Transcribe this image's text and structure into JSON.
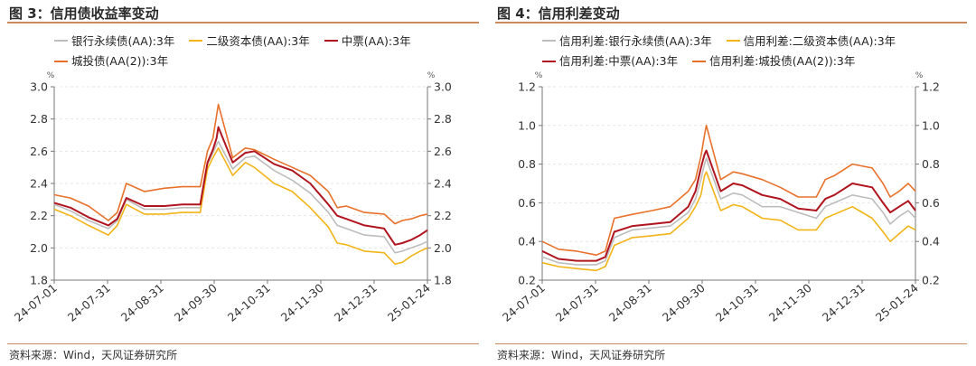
{
  "colors": {
    "accent_rule": "#c98a5e",
    "series": [
      "#bdbdbd",
      "#f2b417",
      "#b0141e",
      "#e8712a"
    ],
    "grid": "#e6e6e6"
  },
  "panels": [
    {
      "title": "图 3：信用债收益率变动",
      "source": "资料来源：Wind，天风证券研究所",
      "legend": [
        "银行永续债(AA):3年",
        "二级资本债(AA):3年",
        "中票(AA):3年",
        "城投债(AA(2)):3年"
      ]
    },
    {
      "title": "图 4：信用利差变动",
      "source": "资料来源：Wind，天风证券研究所",
      "legend": [
        "信用利差:银行永续债(AA):3年",
        "信用利差:二级资本债(AA):3年",
        "信用利差:中票(AA):3年",
        "信用利差:城投债(AA(2)):3年"
      ]
    }
  ],
  "chart_data": [
    {
      "type": "line",
      "title": "图 3：信用债收益率变动",
      "unit_left": "%",
      "unit_right": "%",
      "ylim": [
        1.8,
        3.0
      ],
      "yticks": [
        "1.8",
        "2.0",
        "2.2",
        "2.4",
        "2.6",
        "2.8",
        "3.0"
      ],
      "xlim": [
        "2024-07-01",
        "2025-01-24"
      ],
      "xtick_labels": [
        "24-07-01",
        "24-07-31",
        "24-08-31",
        "24-09-30",
        "24-10-31",
        "24-11-30",
        "24-12-31",
        "25-01-24"
      ],
      "grid": true,
      "legend_position": "top",
      "x": [
        "2024-07-01",
        "2024-07-10",
        "2024-07-20",
        "2024-07-31",
        "2024-08-05",
        "2024-08-10",
        "2024-08-20",
        "2024-08-31",
        "2024-09-10",
        "2024-09-20",
        "2024-09-24",
        "2024-09-27",
        "2024-09-29",
        "2024-09-30",
        "2024-10-08",
        "2024-10-15",
        "2024-10-20",
        "2024-10-31",
        "2024-11-10",
        "2024-11-20",
        "2024-11-30",
        "2024-12-05",
        "2024-12-10",
        "2024-12-20",
        "2024-12-31",
        "2025-01-06",
        "2025-01-10",
        "2025-01-15",
        "2025-01-20",
        "2025-01-24"
      ],
      "series": [
        {
          "name": "银行永续债(AA):3年",
          "values": [
            2.27,
            2.23,
            2.17,
            2.12,
            2.17,
            2.3,
            2.24,
            2.24,
            2.25,
            2.25,
            2.52,
            2.59,
            2.64,
            2.66,
            2.49,
            2.56,
            2.57,
            2.48,
            2.42,
            2.34,
            2.22,
            2.14,
            2.12,
            2.08,
            2.07,
            1.97,
            1.98,
            2.0,
            2.02,
            2.04
          ]
        },
        {
          "name": "二级资本债(AA):3年",
          "values": [
            2.24,
            2.2,
            2.14,
            2.08,
            2.14,
            2.27,
            2.21,
            2.21,
            2.22,
            2.22,
            2.49,
            2.56,
            2.6,
            2.62,
            2.45,
            2.53,
            2.5,
            2.4,
            2.35,
            2.25,
            2.13,
            2.03,
            2.02,
            1.98,
            1.97,
            1.9,
            1.91,
            1.95,
            1.98,
            2.0
          ]
        },
        {
          "name": "中票(AA):3年",
          "values": [
            2.28,
            2.25,
            2.19,
            2.14,
            2.18,
            2.31,
            2.26,
            2.26,
            2.27,
            2.27,
            2.53,
            2.61,
            2.68,
            2.75,
            2.53,
            2.59,
            2.6,
            2.52,
            2.48,
            2.4,
            2.27,
            2.2,
            2.18,
            2.14,
            2.12,
            2.02,
            2.03,
            2.05,
            2.08,
            2.11
          ]
        },
        {
          "name": "城投债(AA(2)):3年",
          "values": [
            2.33,
            2.31,
            2.26,
            2.17,
            2.22,
            2.4,
            2.35,
            2.37,
            2.38,
            2.38,
            2.6,
            2.68,
            2.82,
            2.89,
            2.56,
            2.62,
            2.61,
            2.55,
            2.5,
            2.45,
            2.35,
            2.25,
            2.26,
            2.22,
            2.21,
            2.15,
            2.17,
            2.18,
            2.2,
            2.21
          ]
        }
      ]
    },
    {
      "type": "line",
      "title": "图 4：信用利差变动",
      "unit_left": "%",
      "unit_right": "%",
      "ylim": [
        0.2,
        1.2
      ],
      "yticks": [
        "0.2",
        "0.4",
        "0.6",
        "0.8",
        "1.0",
        "1.2"
      ],
      "xlim": [
        "2024-07-01",
        "2025-01-24"
      ],
      "xtick_labels": [
        "24-07-01",
        "24-07-31",
        "24-08-31",
        "24-09-30",
        "24-10-31",
        "24-11-30",
        "24-12-31",
        "25-01-24"
      ],
      "grid": true,
      "legend_position": "top",
      "x": [
        "2024-07-01",
        "2024-07-10",
        "2024-07-20",
        "2024-07-31",
        "2024-08-05",
        "2024-08-10",
        "2024-08-20",
        "2024-08-31",
        "2024-09-10",
        "2024-09-20",
        "2024-09-24",
        "2024-09-27",
        "2024-09-29",
        "2024-09-30",
        "2024-10-08",
        "2024-10-15",
        "2024-10-20",
        "2024-10-31",
        "2024-11-10",
        "2024-11-20",
        "2024-11-30",
        "2024-12-05",
        "2024-12-10",
        "2024-12-20",
        "2024-12-31",
        "2025-01-06",
        "2025-01-10",
        "2025-01-15",
        "2025-01-20",
        "2025-01-24"
      ],
      "series": [
        {
          "name": "信用利差:银行永续债(AA):3年",
          "values": [
            0.32,
            0.29,
            0.28,
            0.28,
            0.3,
            0.42,
            0.46,
            0.47,
            0.48,
            0.55,
            0.62,
            0.72,
            0.8,
            0.83,
            0.62,
            0.65,
            0.64,
            0.58,
            0.58,
            0.55,
            0.52,
            0.58,
            0.6,
            0.64,
            0.62,
            0.55,
            0.49,
            0.53,
            0.56,
            0.52
          ]
        },
        {
          "name": "信用利差:二级资本债(AA):3年",
          "values": [
            0.29,
            0.27,
            0.26,
            0.25,
            0.27,
            0.38,
            0.42,
            0.43,
            0.44,
            0.52,
            0.58,
            0.64,
            0.74,
            0.76,
            0.56,
            0.59,
            0.58,
            0.52,
            0.51,
            0.46,
            0.46,
            0.52,
            0.54,
            0.58,
            0.52,
            0.45,
            0.4,
            0.44,
            0.48,
            0.46
          ]
        },
        {
          "name": "信用利差:中票(AA):3年",
          "values": [
            0.35,
            0.31,
            0.3,
            0.3,
            0.32,
            0.45,
            0.48,
            0.49,
            0.5,
            0.58,
            0.66,
            0.78,
            0.85,
            0.87,
            0.66,
            0.7,
            0.69,
            0.64,
            0.62,
            0.57,
            0.56,
            0.62,
            0.64,
            0.7,
            0.68,
            0.6,
            0.55,
            0.58,
            0.61,
            0.56
          ]
        },
        {
          "name": "信用利差:城投债(AA(2)):3年",
          "values": [
            0.4,
            0.36,
            0.35,
            0.33,
            0.35,
            0.52,
            0.54,
            0.56,
            0.58,
            0.66,
            0.72,
            0.84,
            0.95,
            1.0,
            0.72,
            0.76,
            0.75,
            0.72,
            0.68,
            0.63,
            0.63,
            0.72,
            0.74,
            0.8,
            0.78,
            0.7,
            0.63,
            0.66,
            0.7,
            0.66
          ]
        }
      ]
    }
  ]
}
